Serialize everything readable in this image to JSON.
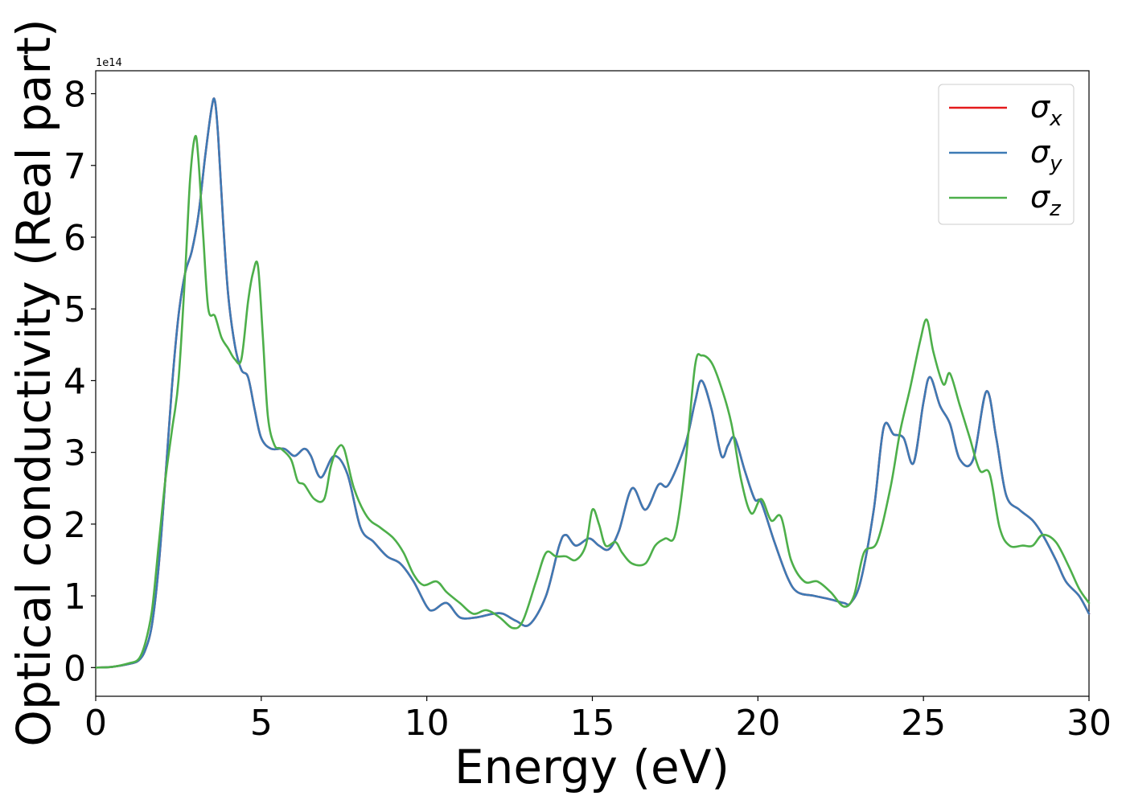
{
  "chart_data": {
    "type": "line",
    "xlabel": "Energy (eV)",
    "ylabel": "Optical conductivity (Real part)",
    "y_offset_text": "1e14",
    "xlim": [
      0,
      30
    ],
    "ylim": [
      -0.4,
      8.32
    ],
    "y_scale_factor": 100000000000000.0,
    "x_ticks": [
      0,
      5,
      10,
      15,
      20,
      25,
      30
    ],
    "x_tick_labels": [
      "0",
      "5",
      "10",
      "15",
      "20",
      "25",
      "30"
    ],
    "y_ticks": [
      0,
      1,
      2,
      3,
      4,
      5,
      6,
      7,
      8
    ],
    "y_tick_labels": [
      "0",
      "1",
      "2",
      "3",
      "4",
      "5",
      "6",
      "7",
      "8"
    ],
    "grid": false,
    "legend_position": "top-right",
    "series": [
      {
        "name": "σ",
        "subscript": "x",
        "color": "#e41a1c",
        "x": [
          0,
          0.5,
          1,
          1.3,
          1.5,
          1.7,
          1.9,
          2.1,
          2.3,
          2.5,
          2.7,
          2.9,
          3.1,
          3.3,
          3.5,
          3.6,
          3.7,
          3.85,
          4,
          4.2,
          4.4,
          4.6,
          4.8,
          5,
          5.3,
          5.7,
          6.0,
          6.3,
          6.5,
          6.8,
          7.2,
          7.6,
          8,
          8.4,
          8.8,
          9.2,
          9.6,
          10,
          10.2,
          10.6,
          11,
          11.5,
          12,
          12.3,
          12.7,
          13.1,
          13.6,
          14,
          14.2,
          14.5,
          14.9,
          15.2,
          15.5,
          15.8,
          16.2,
          16.6,
          17,
          17.3,
          17.8,
          18.1,
          18.3,
          18.6,
          18.9,
          19.1,
          19.3,
          19.6,
          19.9,
          20.1,
          20.5,
          20.9,
          21.2,
          21.7,
          22.2,
          22.6,
          22.8,
          23.1,
          23.5,
          23.8,
          24.1,
          24.4,
          24.7,
          25,
          25.2,
          25.5,
          25.8,
          26.1,
          26.5,
          26.9,
          27.2,
          27.5,
          27.9,
          28.3,
          28.6,
          29,
          29.3,
          29.7,
          30
        ],
        "values": [
          0,
          0.01,
          0.05,
          0.1,
          0.25,
          0.6,
          1.4,
          2.6,
          3.9,
          4.9,
          5.5,
          5.8,
          6.3,
          7.1,
          7.8,
          7.9,
          7.4,
          6.2,
          5.2,
          4.5,
          4.15,
          4.05,
          3.6,
          3.2,
          3.05,
          3.05,
          2.95,
          3.05,
          2.95,
          2.65,
          2.95,
          2.7,
          1.95,
          1.75,
          1.55,
          1.45,
          1.2,
          0.85,
          0.8,
          0.9,
          0.7,
          0.7,
          0.75,
          0.75,
          0.65,
          0.6,
          1.0,
          1.7,
          1.85,
          1.7,
          1.8,
          1.7,
          1.65,
          1.9,
          2.5,
          2.2,
          2.55,
          2.55,
          3.1,
          3.7,
          4.0,
          3.6,
          2.95,
          3.1,
          3.2,
          2.75,
          2.35,
          2.3,
          1.75,
          1.25,
          1.05,
          1.0,
          0.95,
          0.9,
          0.9,
          1.2,
          2.2,
          3.35,
          3.25,
          3.2,
          2.85,
          3.7,
          4.05,
          3.65,
          3.4,
          2.9,
          2.9,
          3.85,
          3.2,
          2.4,
          2.2,
          2.05,
          1.85,
          1.5,
          1.2,
          1.0,
          0.75
        ]
      },
      {
        "name": "σ",
        "subscript": "y",
        "color": "#3d7ab5",
        "x": [
          0,
          0.5,
          1,
          1.3,
          1.5,
          1.7,
          1.9,
          2.1,
          2.3,
          2.5,
          2.7,
          2.9,
          3.1,
          3.3,
          3.5,
          3.6,
          3.7,
          3.85,
          4,
          4.2,
          4.4,
          4.6,
          4.8,
          5,
          5.3,
          5.7,
          6.0,
          6.3,
          6.5,
          6.8,
          7.2,
          7.6,
          8,
          8.4,
          8.8,
          9.2,
          9.6,
          10,
          10.2,
          10.6,
          11,
          11.5,
          12,
          12.3,
          12.7,
          13.1,
          13.6,
          14,
          14.2,
          14.5,
          14.9,
          15.2,
          15.5,
          15.8,
          16.2,
          16.6,
          17,
          17.3,
          17.8,
          18.1,
          18.3,
          18.6,
          18.9,
          19.1,
          19.3,
          19.6,
          19.9,
          20.1,
          20.5,
          20.9,
          21.2,
          21.7,
          22.2,
          22.6,
          22.8,
          23.1,
          23.5,
          23.8,
          24.1,
          24.4,
          24.7,
          25,
          25.2,
          25.5,
          25.8,
          26.1,
          26.5,
          26.9,
          27.2,
          27.5,
          27.9,
          28.3,
          28.6,
          29,
          29.3,
          29.7,
          30
        ],
        "values": [
          0,
          0.01,
          0.05,
          0.1,
          0.25,
          0.6,
          1.4,
          2.6,
          3.9,
          4.9,
          5.5,
          5.8,
          6.3,
          7.1,
          7.8,
          7.9,
          7.4,
          6.2,
          5.2,
          4.5,
          4.15,
          4.05,
          3.6,
          3.2,
          3.05,
          3.05,
          2.95,
          3.05,
          2.95,
          2.65,
          2.95,
          2.7,
          1.95,
          1.75,
          1.55,
          1.45,
          1.2,
          0.85,
          0.8,
          0.9,
          0.7,
          0.7,
          0.75,
          0.75,
          0.65,
          0.6,
          1.0,
          1.7,
          1.85,
          1.7,
          1.8,
          1.7,
          1.65,
          1.9,
          2.5,
          2.2,
          2.55,
          2.55,
          3.1,
          3.7,
          4.0,
          3.6,
          2.95,
          3.1,
          3.2,
          2.75,
          2.35,
          2.3,
          1.75,
          1.25,
          1.05,
          1.0,
          0.95,
          0.9,
          0.9,
          1.2,
          2.2,
          3.35,
          3.25,
          3.2,
          2.85,
          3.7,
          4.05,
          3.65,
          3.4,
          2.9,
          2.9,
          3.85,
          3.2,
          2.4,
          2.2,
          2.05,
          1.85,
          1.5,
          1.2,
          1.0,
          0.75
        ]
      },
      {
        "name": "σ",
        "subscript": "z",
        "color": "#4daf4a",
        "x": [
          0,
          0.5,
          1,
          1.3,
          1.5,
          1.7,
          1.9,
          2.1,
          2.3,
          2.5,
          2.7,
          2.85,
          3.0,
          3.1,
          3.25,
          3.4,
          3.6,
          3.8,
          4.0,
          4.2,
          4.4,
          4.6,
          4.75,
          4.9,
          5.05,
          5.2,
          5.4,
          5.6,
          5.9,
          6.1,
          6.3,
          6.6,
          6.9,
          7.1,
          7.3,
          7.5,
          7.8,
          8.2,
          8.6,
          9,
          9.3,
          9.6,
          9.9,
          10.3,
          10.6,
          11,
          11.4,
          11.8,
          12.2,
          12.6,
          12.9,
          13.3,
          13.6,
          13.9,
          14.2,
          14.5,
          14.8,
          15.0,
          15.2,
          15.4,
          15.7,
          15.9,
          16.2,
          16.6,
          16.9,
          17.2,
          17.5,
          17.8,
          18.1,
          18.3,
          18.6,
          18.9,
          19.2,
          19.5,
          19.8,
          20.1,
          20.4,
          20.7,
          21,
          21.4,
          21.8,
          22.2,
          22.6,
          22.9,
          23.2,
          23.6,
          24,
          24.3,
          24.6,
          24.9,
          25.1,
          25.3,
          25.6,
          25.8,
          26.1,
          26.4,
          26.7,
          27,
          27.3,
          27.6,
          28,
          28.3,
          28.6,
          29,
          29.4,
          29.7,
          30
        ],
        "values": [
          0,
          0.01,
          0.06,
          0.12,
          0.35,
          0.8,
          1.7,
          2.6,
          3.3,
          4.0,
          5.5,
          6.8,
          7.4,
          7.1,
          6.0,
          5.0,
          4.9,
          4.6,
          4.45,
          4.3,
          4.3,
          5.1,
          5.5,
          5.6,
          4.6,
          3.5,
          3.1,
          3.05,
          2.9,
          2.6,
          2.55,
          2.35,
          2.35,
          2.8,
          3.05,
          3.05,
          2.5,
          2.1,
          1.95,
          1.8,
          1.6,
          1.3,
          1.15,
          1.2,
          1.05,
          0.9,
          0.75,
          0.8,
          0.7,
          0.55,
          0.65,
          1.2,
          1.6,
          1.55,
          1.55,
          1.5,
          1.7,
          2.2,
          2.0,
          1.7,
          1.75,
          1.6,
          1.45,
          1.45,
          1.7,
          1.8,
          1.85,
          2.8,
          4.2,
          4.35,
          4.25,
          3.9,
          3.4,
          2.6,
          2.15,
          2.35,
          2.05,
          2.1,
          1.5,
          1.2,
          1.2,
          1.05,
          0.85,
          1.0,
          1.6,
          1.75,
          2.5,
          3.3,
          3.9,
          4.55,
          4.85,
          4.4,
          3.95,
          4.1,
          3.65,
          3.2,
          2.75,
          2.7,
          1.95,
          1.7,
          1.7,
          1.7,
          1.85,
          1.75,
          1.4,
          1.1,
          0.9
        ]
      }
    ]
  }
}
